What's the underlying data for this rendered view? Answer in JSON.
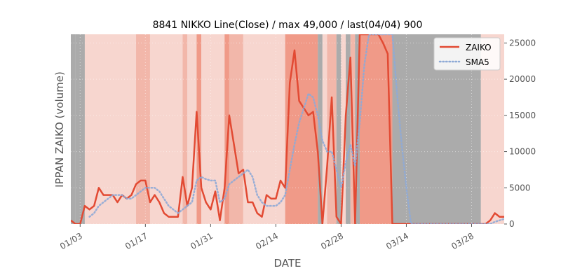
{
  "chart_data": {
    "type": "line",
    "title": "8841 NIKKO Line(Close) / max 49,000 / last(04/04) 900",
    "xlabel": "DATE",
    "ylabel": "IPPAN ZAIKO (volume)",
    "ylim": [
      0,
      26200
    ],
    "yticks": [
      0,
      5000,
      10000,
      15000,
      20000,
      25000
    ],
    "ytick_labels": [
      "0",
      "5000",
      "10000",
      "15000",
      "20000",
      "25000"
    ],
    "y_axis_side": "right",
    "xticks": [
      2,
      16,
      30,
      44,
      58,
      72,
      86
    ],
    "xtick_labels": [
      "01/03",
      "01/17",
      "01/31",
      "02/14",
      "02/28",
      "03/14",
      "03/28"
    ],
    "xlim": [
      0,
      93
    ],
    "legend_position": "top-right",
    "grid": true,
    "colors": {
      "zaiko": "#e24a33",
      "sma5": "#8eaad6"
    },
    "series": [
      {
        "name": "ZAIKO",
        "style": "solid",
        "points": [
          [
            0,
            500
          ],
          [
            1,
            0
          ],
          [
            2,
            0
          ],
          [
            3,
            2500
          ],
          [
            4,
            2000
          ],
          [
            5,
            2500
          ],
          [
            6,
            5000
          ],
          [
            7,
            4000
          ],
          [
            8,
            4000
          ],
          [
            9,
            4000
          ],
          [
            10,
            3000
          ],
          [
            11,
            4000
          ],
          [
            12,
            3500
          ],
          [
            13,
            4000
          ],
          [
            14,
            5500
          ],
          [
            15,
            6000
          ],
          [
            16,
            6000
          ],
          [
            17,
            3000
          ],
          [
            18,
            4000
          ],
          [
            19,
            3000
          ],
          [
            20,
            1500
          ],
          [
            21,
            1000
          ],
          [
            22,
            1000
          ],
          [
            23,
            1000
          ],
          [
            24,
            6500
          ],
          [
            25,
            2500
          ],
          [
            26,
            5000
          ],
          [
            27,
            15500
          ],
          [
            28,
            5000
          ],
          [
            29,
            3000
          ],
          [
            30,
            2000
          ],
          [
            31,
            4500
          ],
          [
            32,
            500
          ],
          [
            33,
            5000
          ],
          [
            34,
            15000
          ],
          [
            35,
            11000
          ],
          [
            36,
            7000
          ],
          [
            37,
            7500
          ],
          [
            38,
            3000
          ],
          [
            39,
            3000
          ],
          [
            40,
            1500
          ],
          [
            41,
            1000
          ],
          [
            42,
            4000
          ],
          [
            43,
            3500
          ],
          [
            44,
            3500
          ],
          [
            45,
            6000
          ],
          [
            46,
            5000
          ],
          [
            47,
            19500
          ],
          [
            48,
            24000
          ],
          [
            49,
            17000
          ],
          [
            50,
            16000
          ],
          [
            51,
            15000
          ],
          [
            52,
            15500
          ],
          [
            53,
            10000
          ],
          [
            54,
            0
          ],
          [
            55,
            8000
          ],
          [
            56,
            17500
          ],
          [
            57,
            1000
          ],
          [
            58,
            0
          ],
          [
            59,
            15000
          ],
          [
            60,
            23000
          ],
          [
            61,
            0
          ],
          [
            62,
            26200
          ],
          [
            63,
            26200
          ],
          [
            64,
            26200
          ],
          [
            65,
            26200
          ],
          [
            66,
            26200
          ],
          [
            67,
            25000
          ],
          [
            68,
            23500
          ],
          [
            69,
            0
          ],
          [
            70,
            0
          ],
          [
            71,
            0
          ],
          [
            72,
            0
          ],
          [
            73,
            0
          ],
          [
            74,
            0
          ],
          [
            75,
            0
          ],
          [
            76,
            0
          ],
          [
            77,
            0
          ],
          [
            78,
            0
          ],
          [
            79,
            0
          ],
          [
            80,
            0
          ],
          [
            81,
            0
          ],
          [
            82,
            0
          ],
          [
            83,
            0
          ],
          [
            84,
            0
          ],
          [
            85,
            0
          ],
          [
            86,
            0
          ],
          [
            87,
            0
          ],
          [
            88,
            0
          ],
          [
            89,
            0
          ],
          [
            90,
            500
          ],
          [
            91,
            1500
          ],
          [
            92,
            1000
          ],
          [
            93,
            1000
          ]
        ]
      },
      {
        "name": "SMA5",
        "style": "dotted",
        "points": [
          [
            4,
            1000
          ],
          [
            5,
            1500
          ],
          [
            6,
            2500
          ],
          [
            7,
            3000
          ],
          [
            8,
            3500
          ],
          [
            9,
            4000
          ],
          [
            10,
            4000
          ],
          [
            11,
            4000
          ],
          [
            12,
            3500
          ],
          [
            13,
            3500
          ],
          [
            14,
            4000
          ],
          [
            15,
            4500
          ],
          [
            16,
            5000
          ],
          [
            17,
            5000
          ],
          [
            18,
            5000
          ],
          [
            19,
            4500
          ],
          [
            20,
            3500
          ],
          [
            21,
            2500
          ],
          [
            22,
            2000
          ],
          [
            23,
            1500
          ],
          [
            24,
            2000
          ],
          [
            25,
            2500
          ],
          [
            26,
            3000
          ],
          [
            27,
            6000
          ],
          [
            28,
            6500
          ],
          [
            29,
            6200
          ],
          [
            30,
            6000
          ],
          [
            31,
            6000
          ],
          [
            32,
            3000
          ],
          [
            33,
            3500
          ],
          [
            34,
            5500
          ],
          [
            35,
            6000
          ],
          [
            36,
            6500
          ],
          [
            37,
            7000
          ],
          [
            38,
            7500
          ],
          [
            39,
            6500
          ],
          [
            40,
            4000
          ],
          [
            41,
            3000
          ],
          [
            42,
            2500
          ],
          [
            43,
            2500
          ],
          [
            44,
            2500
          ],
          [
            45,
            3000
          ],
          [
            46,
            4000
          ],
          [
            47,
            7500
          ],
          [
            48,
            11000
          ],
          [
            49,
            14000
          ],
          [
            50,
            16000
          ],
          [
            51,
            18000
          ],
          [
            52,
            17500
          ],
          [
            53,
            15000
          ],
          [
            54,
            11500
          ],
          [
            55,
            10000
          ],
          [
            56,
            10000
          ],
          [
            57,
            7500
          ],
          [
            58,
            5000
          ],
          [
            59,
            8500
          ],
          [
            60,
            11000
          ],
          [
            61,
            8000
          ],
          [
            62,
            14000
          ],
          [
            63,
            22000
          ],
          [
            64,
            26200
          ],
          [
            65,
            26200
          ],
          [
            66,
            26200
          ],
          [
            67,
            26200
          ],
          [
            68,
            26200
          ],
          [
            69,
            26200
          ],
          [
            70,
            18000
          ],
          [
            71,
            11000
          ],
          [
            72,
            5000
          ],
          [
            73,
            0
          ],
          [
            74,
            0
          ],
          [
            75,
            0
          ],
          [
            76,
            0
          ],
          [
            77,
            0
          ],
          [
            78,
            0
          ],
          [
            79,
            0
          ],
          [
            80,
            0
          ],
          [
            81,
            0
          ],
          [
            82,
            0
          ],
          [
            83,
            0
          ],
          [
            84,
            0
          ],
          [
            85,
            0
          ],
          [
            86,
            0
          ],
          [
            87,
            0
          ],
          [
            88,
            0
          ],
          [
            89,
            0
          ],
          [
            90,
            0
          ],
          [
            91,
            300
          ],
          [
            92,
            500
          ],
          [
            93,
            700
          ]
        ]
      }
    ],
    "bands": [
      {
        "start": 0,
        "end": 1,
        "shade": "gray"
      },
      {
        "start": 1,
        "end": 3,
        "shade": "gray"
      },
      {
        "start": 3,
        "end": 14,
        "shade": "faint"
      },
      {
        "start": 14,
        "end": 17,
        "shade": "light"
      },
      {
        "start": 17,
        "end": 24,
        "shade": "faint"
      },
      {
        "start": 24,
        "end": 25,
        "shade": "light"
      },
      {
        "start": 25,
        "end": 27,
        "shade": "faint"
      },
      {
        "start": 27,
        "end": 28,
        "shade": "medium"
      },
      {
        "start": 28,
        "end": 33,
        "shade": "faint"
      },
      {
        "start": 33,
        "end": 34,
        "shade": "medium"
      },
      {
        "start": 34,
        "end": 37,
        "shade": "light"
      },
      {
        "start": 37,
        "end": 46,
        "shade": "faint"
      },
      {
        "start": 46,
        "end": 53,
        "shade": "medium"
      },
      {
        "start": 53,
        "end": 54,
        "shade": "gray"
      },
      {
        "start": 54,
        "end": 55,
        "shade": "faint"
      },
      {
        "start": 55,
        "end": 57,
        "shade": "light"
      },
      {
        "start": 57,
        "end": 58,
        "shade": "gray"
      },
      {
        "start": 58,
        "end": 59,
        "shade": "faint"
      },
      {
        "start": 59,
        "end": 60,
        "shade": "gray"
      },
      {
        "start": 60,
        "end": 61,
        "shade": "light"
      },
      {
        "start": 61,
        "end": 62,
        "shade": "gray"
      },
      {
        "start": 62,
        "end": 69,
        "shade": "medium"
      },
      {
        "start": 69,
        "end": 88,
        "shade": "gray"
      },
      {
        "start": 88,
        "end": 93,
        "shade": "faint"
      }
    ]
  }
}
